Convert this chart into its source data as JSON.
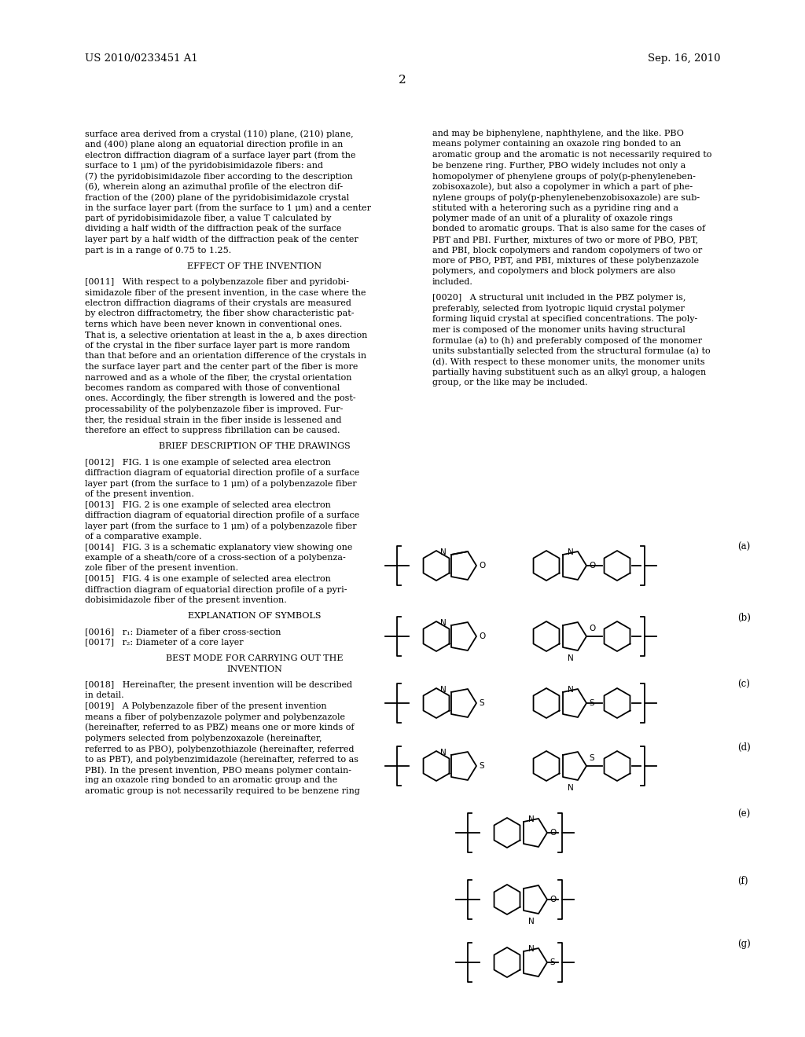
{
  "background_color": "#ffffff",
  "header_left": "US 2010/0233451 A1",
  "header_right": "Sep. 16, 2010",
  "page_number": "2",
  "left_col_text": "surface area derived from a crystal (110) plane, (210) plane,\nand (400) plane along an equatorial direction profile in an\nelectron diffraction diagram of a surface layer part (from the\nsurface to 1 μm) of the pyridobisimidazole fibers: and\n(7) the pyridobisimidazole fiber according to the description\n(6), wherein along an azimuthal profile of the electron dif-\nfraction of the (200) plane of the pyridobisimidazole crystal\nin the surface layer part (from the surface to 1 μm) and a center\npart of pyridobisimidazole fiber, a value T calculated by\ndividing a half width of the diffraction peak of the surface\nlayer part by a half width of the diffraction peak of the center\npart is in a range of 0.75 to 1.25.\n\nEFFECT OF THE INVENTION\n\n[0011]   With respect to a polybenzazole fiber and pyridobi-\nsimidazole fiber of the present invention, in the case where the\nelectron diffraction diagrams of their crystals are measured\nby electron diffractometry, the fiber show characteristic pat-\nterns which have been never known in conventional ones.\nThat is, a selective orientation at least in the a, b axes direction\nof the crystal in the fiber surface layer part is more random\nthan that before and an orientation difference of the crystals in\nthe surface layer part and the center part of the fiber is more\nnarrowed and as a whole of the fiber, the crystal orientation\nbecomes random as compared with those of conventional\nones. Accordingly, the fiber strength is lowered and the post-\nprocessability of the polybenzazole fiber is improved. Fur-\nther, the residual strain in the fiber inside is lessened and\ntherefore an effect to suppress fibrillation can be caused.\n\nBRIEF DESCRIPTION OF THE DRAWINGS\n\n[0012]   FIG. 1 is one example of selected area electron\ndiffraction diagram of equatorial direction profile of a surface\nlayer part (from the surface to 1 μm) of a polybenzazole fiber\nof the present invention.\n[0013]   FIG. 2 is one example of selected area electron\ndiffraction diagram of equatorial direction profile of a surface\nlayer part (from the surface to 1 μm) of a polybenzazole fiber\nof a comparative example.\n[0014]   FIG. 3 is a schematic explanatory view showing one\nexample of a sheath/core of a cross-section of a polybenza-\nzole fiber of the present invention.\n[0015]   FIG. 4 is one example of selected area electron\ndiffraction diagram of equatorial direction profile of a pyri-\ndobisimidazole fiber of the present invention.\n\nEXPLANATION OF SYMBOLS\n\n[0016]   r₁: Diameter of a fiber cross-section\n[0017]   r₂: Diameter of a core layer\n\nBEST MODE FOR CARRYING OUT THE\nINVENTION\n\n[0018]   Hereinafter, the present invention will be described\nin detail.\n[0019]   A Polybenzazole fiber of the present invention\nmeans a fiber of polybenzazole polymer and polybenzazole\n(hereinafter, referred to as PBZ) means one or more kinds of\npolymers selected from polybenzoxazole (hereinafter,\nreferred to as PBO), polybenzothiazole (hereinafter, referred\nto as PBT), and polybenzimidazole (hereinafter, referred to as\nPBI). In the present invention, PBO means polymer contain-\ning an oxazole ring bonded to an aromatic group and the\naromatic group is not necessarily required to be benzene ring",
  "right_col_text": "and may be biphenylene, naphthylene, and the like. PBO\nmeans polymer containing an oxazole ring bonded to an\naromatic group and the aromatic is not necessarily required to\nbe benzene ring. Further, PBO widely includes not only a\nhomopolymer of phenylene groups of poly(p-phenyleneben-\nzobisoxazole), but also a copolymer in which a part of phe-\nnylene groups of poly(p-phenylenebenzobisoxazole) are sub-\nstituted with a heteroring such as a pyridine ring and a\npolymer made of an unit of a plurality of oxazole rings\nbonded to aromatic groups. That is also same for the cases of\nPBT and PBI. Further, mixtures of two or more of PBO, PBT,\nand PBI, block copolymers and random copolymers of two or\nmore of PBO, PBT, and PBI, mixtures of these polybenzazole\npolymers, and copolymers and block polymers are also\nincluded.\n\n[0020]   A structural unit included in the PBZ polymer is,\npreferably, selected from lyotropic liquid crystal polymer\nforming liquid crystal at specified concentrations. The poly-\nmer is composed of the monomer units having structural\nformulae (a) to (h) and preferably composed of the monomer\nunits substantially selected from the structural formulae (a) to\n(d). With respect to these monomer units, the monomer units\npartially having substituent such as an alkyl group, a halogen\ngroup, or the like may be included."
}
